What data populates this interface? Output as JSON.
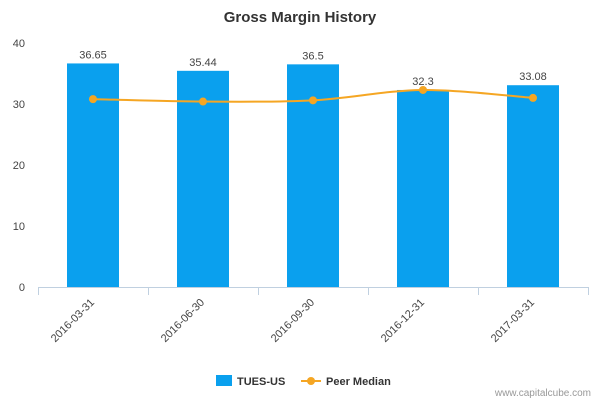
{
  "chart_data": {
    "type": "bar",
    "title": "Gross Margin History",
    "xlabel": "",
    "ylabel": "",
    "categories": [
      "2016-03-31",
      "2016-06-30",
      "2016-09-30",
      "2016-12-31",
      "2017-03-31"
    ],
    "ylim": [
      0,
      40
    ],
    "yticks": [
      0,
      10,
      20,
      30,
      40
    ],
    "grid": false,
    "legend_position": "bottom",
    "series": [
      {
        "name": "TUES-US",
        "type": "bar",
        "color": "#0AA0EE",
        "values": [
          36.65,
          35.44,
          36.5,
          32.3,
          33.08
        ],
        "labels": [
          "36.65",
          "35.44",
          "36.5",
          "32.3",
          "33.08"
        ]
      },
      {
        "name": "Peer Median",
        "type": "line",
        "color": "#F5A623",
        "values": [
          30.8,
          30.4,
          30.6,
          32.3,
          31.0
        ]
      }
    ]
  },
  "credit": "www.capitalcube.com"
}
